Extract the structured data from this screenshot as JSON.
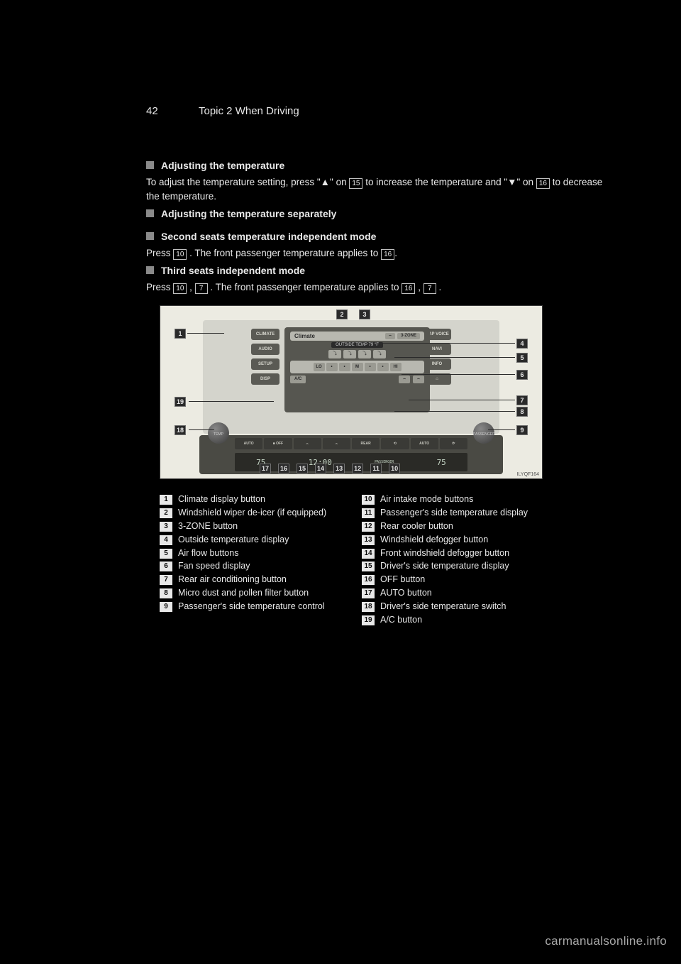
{
  "pageNumTop": "42",
  "runningHead": "Topic 2    When Driving",
  "sections": [
    {
      "title": "Adjusting the temperature",
      "text": "To adjust the temperature setting, press \"▲\" on   to increase the temperature and \"▼\" on   to decrease the temperature."
    },
    {
      "title": "Adjusting the temperature separately",
      "text": ""
    },
    {
      "title": "Second seats temperature independent mode",
      "text": "Press  . The front passenger temperature applies to ."
    },
    {
      "title": "Third seats independent mode",
      "text": "Press   ,  . The front passenger temperature applies to   ,  ."
    }
  ],
  "inlineNums": {
    "s0a": "15",
    "s0b": "16",
    "s2a": "10",
    "s2b": "16",
    "s3a": "10",
    "s3b": "7",
    "s3c": "16",
    "s3d": "7"
  },
  "photo": {
    "screenTitle": "Climate",
    "zoneBtn": "3-ZONE",
    "outsideTemp": "OUTSIDE TEMP   79 °F",
    "modeIcons": [
      "▢",
      "▢",
      "▢",
      "▢"
    ],
    "fanRow": [
      "LO",
      "•",
      "•",
      "M",
      "•",
      "•",
      "HI"
    ],
    "acBtn": "A/C",
    "sideLeft": [
      "CLIMATE",
      "AUDIO",
      "SETUP",
      "DISP"
    ],
    "sideRight": [
      "MAP VOICE",
      "NAVI",
      "INFO",
      "⌂"
    ],
    "strip": [
      "AUTO",
      "■ OFF",
      "⌢",
      "⌢",
      "REAR",
      "⟲",
      "AUTO",
      "⟳"
    ],
    "lcd": [
      "75",
      "12:00",
      "",
      "75"
    ],
    "passengerTxt": "PASSENGER",
    "tempTxt": "TEMP",
    "imgCode": "ILYQF164"
  },
  "bottomCallouts": [
    "17",
    "16",
    "15",
    "14",
    "13",
    "12",
    "11",
    "10"
  ],
  "leftCallouts": {
    "c1": "1",
    "c19": "19",
    "c18": "18"
  },
  "topCallouts": {
    "c2": "2",
    "c3": "3"
  },
  "rightCallouts": {
    "c4": "4",
    "c5": "5",
    "c6": "6",
    "c7": "7",
    "c8": "8",
    "c9": "9"
  },
  "legendLeft": [
    {
      "n": "1",
      "t": "Climate display button"
    },
    {
      "n": "2",
      "t": "Windshield wiper de-icer (if equipped)"
    },
    {
      "n": "3",
      "t": "3-ZONE button"
    },
    {
      "n": "4",
      "t": "Outside temperature display"
    },
    {
      "n": "5",
      "t": "Air flow buttons"
    },
    {
      "n": "6",
      "t": "Fan speed display"
    },
    {
      "n": "7",
      "t": "Rear air conditioning button"
    },
    {
      "n": "8",
      "t": "Micro dust and pollen filter button"
    },
    {
      "n": "9",
      "t": "Passenger's side temperature control"
    }
  ],
  "legendRight": [
    {
      "n": "10",
      "t": "Air intake mode buttons"
    },
    {
      "n": "11",
      "t": "Passenger's side temperature display"
    },
    {
      "n": "12",
      "t": "Rear cooler button"
    },
    {
      "n": "13",
      "t": "Windshield defogger button"
    },
    {
      "n": "14",
      "t": "Front windshield defogger button"
    },
    {
      "n": "15",
      "t": "Driver's side temperature display"
    },
    {
      "n": "16",
      "t": "OFF button"
    },
    {
      "n": "17",
      "t": "AUTO button"
    },
    {
      "n": "18",
      "t": "Driver's side temperature switch"
    },
    {
      "n": "19",
      "t": "A/C button"
    }
  ],
  "watermark": "carmanualsonline.info"
}
